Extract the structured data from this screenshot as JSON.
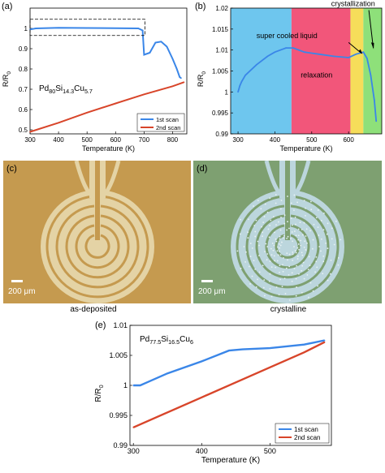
{
  "panels": {
    "a": {
      "label": "(a)"
    },
    "b": {
      "label": "(b)"
    },
    "c": {
      "label": "(c)",
      "scale_bar": "200 μm",
      "caption": "as-deposited"
    },
    "d": {
      "label": "(d)",
      "scale_bar": "200 μm",
      "caption": "crystalline"
    },
    "e": {
      "label": "(e)"
    }
  },
  "colors": {
    "first_scan": "#3a86e8",
    "second_scan": "#d8452a",
    "supercooled": "#6ec6ee",
    "relaxation_bg": "#f2567a",
    "yellow_band": "#f6dd5a",
    "green_band": "#8ee07a",
    "photo_c_bg": "#c59a4f",
    "photo_c_pattern": "#e4d3a5",
    "photo_d_bg": "#7ea071",
    "photo_d_pattern": "#bcd6dd"
  },
  "chart_data": [
    {
      "id": "a",
      "type": "line",
      "ylabel": "R/R0",
      "xlabel": "Temperature (K)",
      "xlim": [
        300,
        850
      ],
      "ylim": [
        0.48,
        1.1
      ],
      "xticks": [
        300,
        400,
        500,
        600,
        700,
        800
      ],
      "yticks": [
        0.5,
        0.6,
        0.7,
        0.8,
        0.9,
        1
      ],
      "annotation": "Pd80Si14.3Cu5.7",
      "legend_position": "bottom-right",
      "series": [
        {
          "name": "1st scan",
          "x": [
            300,
            320,
            400,
            500,
            600,
            680,
            695,
            700,
            720,
            740,
            760,
            780,
            800,
            815,
            825,
            830
          ],
          "y": [
            0.995,
            1.0,
            1.003,
            1.002,
            1.001,
            1.0,
            0.99,
            0.87,
            0.88,
            0.93,
            0.935,
            0.91,
            0.85,
            0.8,
            0.76,
            0.755
          ]
        },
        {
          "name": "2nd scan",
          "x": [
            300,
            400,
            500,
            600,
            700,
            800,
            840
          ],
          "y": [
            0.49,
            0.535,
            0.585,
            0.63,
            0.675,
            0.715,
            0.735
          ]
        }
      ]
    },
    {
      "id": "b",
      "type": "line",
      "ylabel": "R/R0",
      "xlabel": "Temperature (K)",
      "xlim": [
        280,
        690
      ],
      "ylim": [
        0.99,
        1.02
      ],
      "xticks": [
        300,
        400,
        500,
        600
      ],
      "yticks": [
        0.99,
        0.995,
        1,
        1.005,
        1.01,
        1.015,
        1.02
      ],
      "regions": [
        {
          "from": 280,
          "to": 445,
          "label": "super cooled liquid"
        },
        {
          "from": 445,
          "to": 605,
          "label": "relaxation"
        },
        {
          "from": 605,
          "to": 640,
          "label": ""
        },
        {
          "from": 640,
          "to": 690,
          "label": ""
        }
      ],
      "annotation": "crystallization",
      "series": [
        {
          "name": "",
          "x": [
            300,
            305,
            310,
            320,
            350,
            380,
            400,
            430,
            450,
            480,
            520,
            560,
            600,
            620,
            640,
            650,
            660,
            670,
            675
          ],
          "y": [
            1.0,
            1.0015,
            1.0025,
            1.004,
            1.0065,
            1.0085,
            1.0095,
            1.0105,
            1.0105,
            1.0095,
            1.009,
            1.0085,
            1.0082,
            1.009,
            1.0095,
            1.008,
            1.004,
            0.998,
            0.993
          ]
        }
      ]
    },
    {
      "id": "e",
      "type": "line",
      "ylabel": "R/R0",
      "xlabel": "Temperature (K)",
      "xlim": [
        295,
        590
      ],
      "ylim": [
        0.99,
        1.01
      ],
      "xticks": [
        300,
        400,
        500
      ],
      "yticks": [
        0.99,
        0.995,
        1,
        1.005,
        1.01
      ],
      "annotation": "Pd77.5Si16.5Cu6",
      "legend_position": "bottom-right",
      "series": [
        {
          "name": "1st scan",
          "x": [
            300,
            310,
            320,
            350,
            400,
            440,
            460,
            500,
            550,
            580
          ],
          "y": [
            1.0,
            1.0,
            1.0005,
            1.002,
            1.004,
            1.0058,
            1.006,
            1.0062,
            1.0068,
            1.0075
          ]
        },
        {
          "name": "2nd scan",
          "x": [
            300,
            350,
            400,
            450,
            500,
            550,
            580
          ],
          "y": [
            0.993,
            0.9955,
            0.998,
            1.0005,
            1.003,
            1.0055,
            1.0072
          ]
        }
      ]
    }
  ]
}
